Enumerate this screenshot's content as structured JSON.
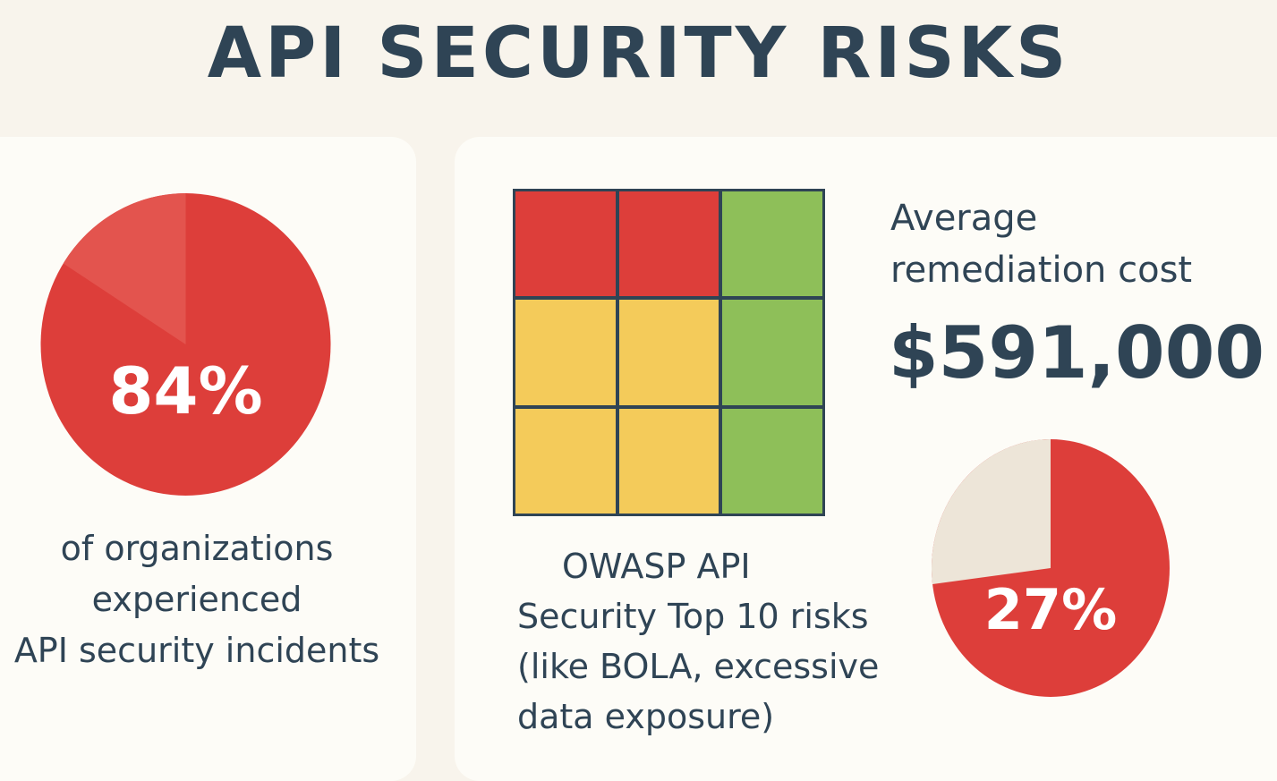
{
  "title": "API SECURITY RISKS",
  "colors": {
    "background": "#f8f4ec",
    "card": "#fdfcf7",
    "text": "#2f4455",
    "red": "#dd3e3a",
    "red_light": "#e3544e",
    "yellow": "#f4cb5a",
    "green": "#8ebf59",
    "beige": "#ede5d8"
  },
  "stat_incidents": {
    "percent_label": "84%",
    "percent_value": 84,
    "caption_lines": [
      "of organizations",
      "experienced",
      "API security incidents"
    ]
  },
  "risk_grid": {
    "cells": [
      "red",
      "red",
      "green",
      "yellow",
      "yellow",
      "green",
      "yellow",
      "yellow",
      "green"
    ],
    "caption_lines": [
      "OWASP API",
      "Security Top 10 risks",
      "(like BOLA, excessive",
      "data exposure)"
    ]
  },
  "remediation": {
    "label_lines": [
      "Average",
      "remediation cost"
    ],
    "value": "$591,000"
  },
  "stat_secondary": {
    "percent_label": "27%",
    "percent_value": 27
  }
}
